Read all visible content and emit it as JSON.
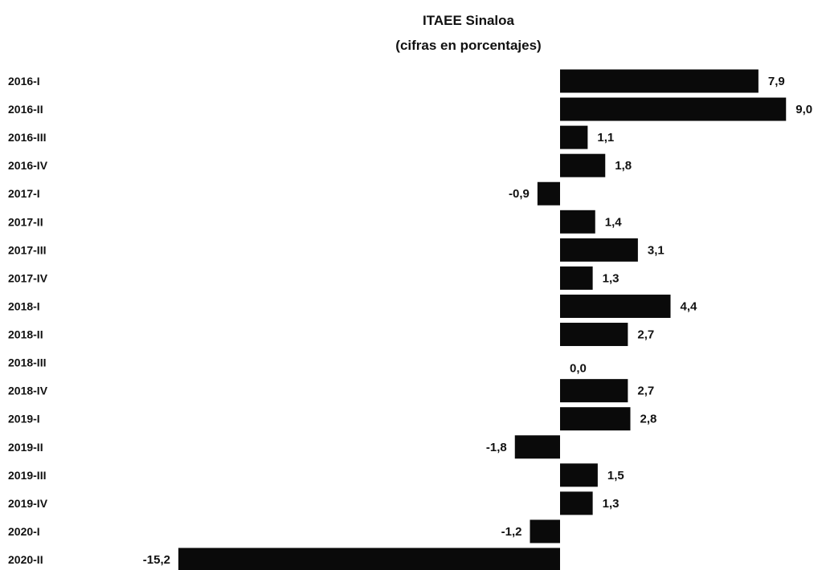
{
  "chart_data": {
    "type": "bar",
    "orientation": "horizontal",
    "title": "ITAEE Sinaloa",
    "subtitle": "(cifras en porcentajes)",
    "categories": [
      "2016-I",
      "2016-II",
      "2016-III",
      "2016-IV",
      "2017-I",
      "2017-II",
      "2017-III",
      "2017-IV",
      "2018-I",
      "2018-II",
      "2018-III",
      "2018-IV",
      "2019-I",
      "2019-II",
      "2019-III",
      "2019-IV",
      "2020-I",
      "2020-II"
    ],
    "values": [
      7.9,
      9.0,
      1.1,
      1.8,
      -0.9,
      1.4,
      3.1,
      1.3,
      4.4,
      2.7,
      0.0,
      2.7,
      2.8,
      -1.8,
      1.5,
      1.3,
      -1.2,
      -15.2
    ],
    "value_labels": [
      "7,9",
      "9,0",
      "1,1",
      "1,8",
      "-0,9",
      "1,4",
      "3,1",
      "1,3",
      "4,4",
      "2,7",
      "0,0",
      "2,7",
      "2,8",
      "-1,8",
      "1,5",
      "1,3",
      "-1,2",
      "-15,2"
    ],
    "xlabel": "",
    "ylabel": "",
    "xlim": [
      -15.2,
      9.0
    ],
    "grid": false,
    "legend": "none",
    "bar_color": "#0a0a0a"
  }
}
